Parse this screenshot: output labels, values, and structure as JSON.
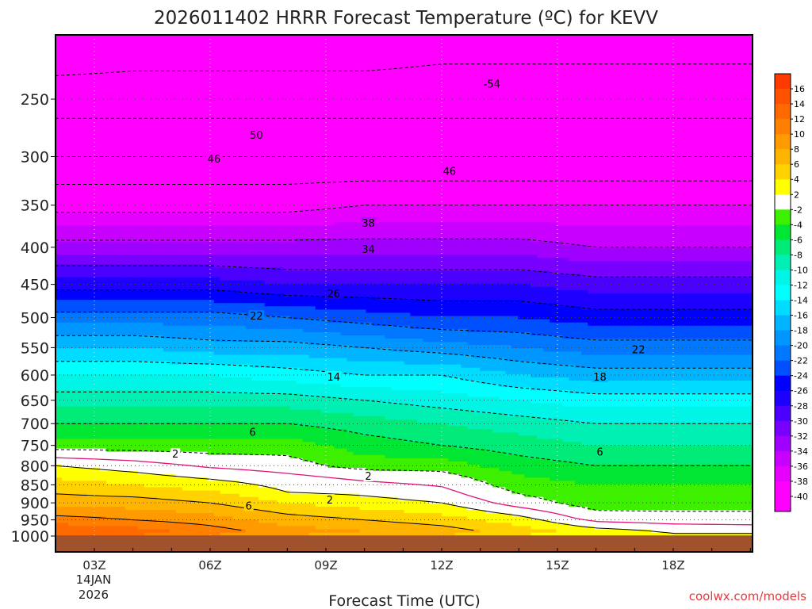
{
  "chart_data": {
    "type": "heatmap",
    "title": "2026011402 HRRR Forecast Temperature (ºC) for KEVV",
    "xlabel": "Forecast Time (UTC)",
    "ylabel": "",
    "credit": "coolwx.com/models",
    "x_ticks": [
      {
        "hour": 3,
        "label": "03Z"
      },
      {
        "hour": 6,
        "label": "06Z"
      },
      {
        "hour": 9,
        "label": "09Z"
      },
      {
        "hour": 12,
        "label": "12Z"
      },
      {
        "hour": 15,
        "label": "15Z"
      },
      {
        "hour": 18,
        "label": "18Z"
      }
    ],
    "x_date_label": [
      "14JAN",
      "2026"
    ],
    "xlim": [
      2,
      20
    ],
    "y_ticks": [
      250,
      300,
      350,
      400,
      450,
      500,
      550,
      600,
      650,
      700,
      750,
      800,
      850,
      900,
      950,
      1000
    ],
    "ylim_hpa": [
      200,
      1025
    ],
    "ground_pressure_hpa": 998,
    "grid": true,
    "colorbar": {
      "bands": [
        {
          "low": 16,
          "high": 18,
          "color": "#ff3a00"
        },
        {
          "low": 14,
          "high": 16,
          "color": "#ff5200"
        },
        {
          "low": 12,
          "high": 14,
          "color": "#ff6a00"
        },
        {
          "low": 10,
          "high": 12,
          "color": "#ff8000"
        },
        {
          "low": 8,
          "high": 10,
          "color": "#ff9a00"
        },
        {
          "low": 6,
          "high": 8,
          "color": "#ffb400"
        },
        {
          "low": 4,
          "high": 6,
          "color": "#ffd200"
        },
        {
          "low": 2,
          "high": 4,
          "color": "#ffff00"
        },
        {
          "low": -2,
          "high": 2,
          "color": "#ffffff"
        },
        {
          "low": -4,
          "high": -2,
          "color": "#3cf000"
        },
        {
          "low": -6,
          "high": -4,
          "color": "#00e632"
        },
        {
          "low": -8,
          "high": -6,
          "color": "#00eb78"
        },
        {
          "low": -10,
          "high": -8,
          "color": "#00f0b4"
        },
        {
          "low": -12,
          "high": -10,
          "color": "#00f5e6"
        },
        {
          "low": -14,
          "high": -12,
          "color": "#00ffff"
        },
        {
          "low": -16,
          "high": -14,
          "color": "#00dcff"
        },
        {
          "low": -18,
          "high": -16,
          "color": "#00b4ff"
        },
        {
          "low": -20,
          "high": -18,
          "color": "#0096ff"
        },
        {
          "low": -22,
          "high": -20,
          "color": "#0078ff"
        },
        {
          "low": -24,
          "high": -22,
          "color": "#0050ff"
        },
        {
          "low": -26,
          "high": -24,
          "color": "#0000ff"
        },
        {
          "low": -28,
          "high": -26,
          "color": "#1e00ff"
        },
        {
          "low": -30,
          "high": -28,
          "color": "#4b00ff"
        },
        {
          "low": -32,
          "high": -30,
          "color": "#7800ff"
        },
        {
          "low": -34,
          "high": -32,
          "color": "#a000ff"
        },
        {
          "low": -36,
          "high": -34,
          "color": "#c800ff"
        },
        {
          "low": -38,
          "high": -36,
          "color": "#e600ff"
        },
        {
          "low": -40,
          "high": -38,
          "color": "#ff00ff"
        },
        {
          "low": -60,
          "high": -40,
          "color": "#ff00ff"
        }
      ],
      "labels": [
        "16",
        "14",
        "12",
        "10",
        "8",
        "6",
        "4",
        "2",
        "-2",
        "-4",
        "-6",
        "-8",
        "-10",
        "-12",
        "-14",
        "-16",
        "-18",
        "-20",
        "-22",
        "-24",
        "-26",
        "-28",
        "-30",
        "-32",
        "-34",
        "-36",
        "-38",
        "-40"
      ],
      "ground_color": "#a0522d",
      "freezing_line_color": "#e0147a",
      "contour_color": "#000000"
    },
    "temperature_profiles": [
      {
        "hour": 2,
        "points": [
          [
            200,
            -58
          ],
          [
            250,
            -52
          ],
          [
            300,
            -46
          ],
          [
            350,
            -39
          ],
          [
            400,
            -33
          ],
          [
            450,
            -27
          ],
          [
            500,
            -21
          ],
          [
            550,
            -16
          ],
          [
            600,
            -12
          ],
          [
            650,
            -9
          ],
          [
            700,
            -6
          ],
          [
            750,
            -3
          ],
          [
            780,
            0
          ],
          [
            800,
            2
          ],
          [
            850,
            5
          ],
          [
            900,
            7
          ],
          [
            950,
            11
          ],
          [
            985,
            14
          ],
          [
            998,
            13
          ]
        ]
      },
      {
        "hour": 4,
        "points": [
          [
            200,
            -57
          ],
          [
            250,
            -52
          ],
          [
            300,
            -46
          ],
          [
            350,
            -39
          ],
          [
            400,
            -33
          ],
          [
            450,
            -27
          ],
          [
            500,
            -21
          ],
          [
            550,
            -16
          ],
          [
            600,
            -12
          ],
          [
            650,
            -9
          ],
          [
            700,
            -6
          ],
          [
            750,
            -3
          ],
          [
            775,
            -1
          ],
          [
            800,
            1
          ],
          [
            850,
            4
          ],
          [
            900,
            7
          ],
          [
            950,
            10
          ],
          [
            985,
            13
          ],
          [
            998,
            12
          ]
        ]
      },
      {
        "hour": 6,
        "points": [
          [
            200,
            -57
          ],
          [
            250,
            -52
          ],
          [
            300,
            -46
          ],
          [
            350,
            -39
          ],
          [
            400,
            -33
          ],
          [
            450,
            -27
          ],
          [
            500,
            -21
          ],
          [
            550,
            -17
          ],
          [
            600,
            -12
          ],
          [
            650,
            -9
          ],
          [
            700,
            -6
          ],
          [
            750,
            -3
          ],
          [
            790,
            -1
          ],
          [
            820,
            1
          ],
          [
            850,
            3
          ],
          [
            900,
            6
          ],
          [
            950,
            9
          ],
          [
            985,
            11
          ],
          [
            998,
            10
          ]
        ]
      },
      {
        "hour": 8,
        "points": [
          [
            200,
            -57
          ],
          [
            250,
            -52
          ],
          [
            300,
            -46
          ],
          [
            350,
            -39
          ],
          [
            400,
            -33
          ],
          [
            450,
            -28
          ],
          [
            500,
            -22
          ],
          [
            550,
            -17
          ],
          [
            600,
            -13
          ],
          [
            650,
            -9
          ],
          [
            700,
            -6
          ],
          [
            750,
            -3
          ],
          [
            800,
            -1
          ],
          [
            840,
            1
          ],
          [
            870,
            2
          ],
          [
            900,
            4
          ],
          [
            950,
            7
          ],
          [
            985,
            9
          ],
          [
            998,
            8
          ]
        ]
      },
      {
        "hour": 10,
        "points": [
          [
            200,
            -57
          ],
          [
            250,
            -52
          ],
          [
            300,
            -46
          ],
          [
            350,
            -38
          ],
          [
            400,
            -33
          ],
          [
            450,
            -28
          ],
          [
            500,
            -23
          ],
          [
            550,
            -18
          ],
          [
            600,
            -14
          ],
          [
            650,
            -10
          ],
          [
            700,
            -7
          ],
          [
            750,
            -5
          ],
          [
            800,
            -3
          ],
          [
            820,
            -1
          ],
          [
            860,
            1
          ],
          [
            900,
            3
          ],
          [
            950,
            6
          ],
          [
            985,
            8
          ],
          [
            998,
            7
          ]
        ]
      },
      {
        "hour": 12,
        "points": [
          [
            200,
            -56
          ],
          [
            250,
            -52
          ],
          [
            300,
            -46
          ],
          [
            350,
            -38
          ],
          [
            400,
            -33
          ],
          [
            450,
            -28
          ],
          [
            500,
            -24
          ],
          [
            550,
            -19
          ],
          [
            600,
            -14
          ],
          [
            650,
            -11
          ],
          [
            700,
            -8
          ],
          [
            750,
            -6
          ],
          [
            800,
            -3
          ],
          [
            830,
            -1
          ],
          [
            880,
            1
          ],
          [
            900,
            2
          ],
          [
            950,
            5
          ],
          [
            985,
            7
          ],
          [
            998,
            6
          ]
        ]
      },
      {
        "hour": 14,
        "points": [
          [
            200,
            -56
          ],
          [
            250,
            -52
          ],
          [
            300,
            -46
          ],
          [
            350,
            -38
          ],
          [
            400,
            -33
          ],
          [
            450,
            -28
          ],
          [
            500,
            -24
          ],
          [
            550,
            -20
          ],
          [
            600,
            -16
          ],
          [
            650,
            -12
          ],
          [
            700,
            -9
          ],
          [
            750,
            -7
          ],
          [
            800,
            -5
          ],
          [
            850,
            -3
          ],
          [
            900,
            -1
          ],
          [
            925,
            1
          ],
          [
            950,
            3
          ],
          [
            985,
            5
          ],
          [
            998,
            4
          ]
        ]
      },
      {
        "hour": 16,
        "points": [
          [
            200,
            -56
          ],
          [
            250,
            -52
          ],
          [
            300,
            -46
          ],
          [
            350,
            -38
          ],
          [
            400,
            -34
          ],
          [
            450,
            -29
          ],
          [
            500,
            -25
          ],
          [
            550,
            -21
          ],
          [
            600,
            -17
          ],
          [
            650,
            -13
          ],
          [
            700,
            -10
          ],
          [
            750,
            -8
          ],
          [
            800,
            -6
          ],
          [
            850,
            -4
          ],
          [
            900,
            -3
          ],
          [
            945,
            -1
          ],
          [
            965,
            1
          ],
          [
            985,
            3
          ],
          [
            998,
            2
          ]
        ]
      },
      {
        "hour": 18,
        "points": [
          [
            200,
            -56
          ],
          [
            250,
            -52
          ],
          [
            300,
            -46
          ],
          [
            350,
            -38
          ],
          [
            400,
            -34
          ],
          [
            450,
            -29
          ],
          [
            500,
            -25
          ],
          [
            550,
            -21
          ],
          [
            600,
            -17
          ],
          [
            650,
            -13
          ],
          [
            700,
            -10
          ],
          [
            750,
            -8
          ],
          [
            800,
            -6
          ],
          [
            850,
            -4
          ],
          [
            900,
            -3
          ],
          [
            950,
            -1
          ],
          [
            975,
            1
          ],
          [
            990,
            2
          ],
          [
            998,
            2
          ]
        ]
      },
      {
        "hour": 20,
        "points": [
          [
            200,
            -56
          ],
          [
            250,
            -52
          ],
          [
            300,
            -46
          ],
          [
            350,
            -38
          ],
          [
            400,
            -34
          ],
          [
            450,
            -29
          ],
          [
            500,
            -25
          ],
          [
            550,
            -21
          ],
          [
            600,
            -17
          ],
          [
            650,
            -13
          ],
          [
            700,
            -10
          ],
          [
            750,
            -8
          ],
          [
            800,
            -6
          ],
          [
            850,
            -4
          ],
          [
            900,
            -3
          ],
          [
            950,
            -1
          ],
          [
            980,
            1
          ],
          [
            992,
            2
          ],
          [
            998,
            2
          ]
        ]
      }
    ],
    "contour_labels": [
      {
        "text": "-54",
        "hour": 13.3,
        "hpa": 238
      },
      {
        "text": "50",
        "hour": 7.2,
        "hpa": 280
      },
      {
        "text": "46",
        "hour": 6.1,
        "hpa": 302
      },
      {
        "text": "46",
        "hour": 12.2,
        "hpa": 314
      },
      {
        "text": "38",
        "hour": 10.1,
        "hpa": 370
      },
      {
        "text": "34",
        "hour": 10.1,
        "hpa": 402
      },
      {
        "text": "26",
        "hour": 9.2,
        "hpa": 463
      },
      {
        "text": "22",
        "hour": 7.2,
        "hpa": 497
      },
      {
        "text": "22",
        "hour": 17.1,
        "hpa": 553
      },
      {
        "text": "18",
        "hour": 16.1,
        "hpa": 603
      },
      {
        "text": "14",
        "hour": 9.2,
        "hpa": 603
      },
      {
        "text": "6",
        "hour": 7.1,
        "hpa": 718
      },
      {
        "text": "6",
        "hour": 16.1,
        "hpa": 765
      },
      {
        "text": "2",
        "hour": 5.1,
        "hpa": 770
      },
      {
        "text": "2",
        "hour": 10.1,
        "hpa": 826
      },
      {
        "text": "2",
        "hour": 9.1,
        "hpa": 891
      },
      {
        "text": "6",
        "hour": 7.0,
        "hpa": 908
      }
    ]
  }
}
